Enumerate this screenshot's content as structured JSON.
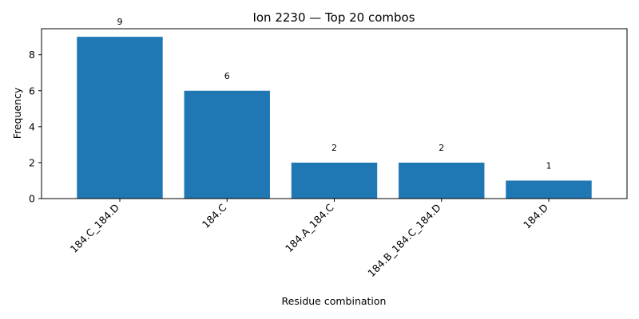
{
  "chart_data": {
    "type": "bar",
    "title": "Ion 2230 — Top 20 combos",
    "xlabel": "Residue combination",
    "ylabel": "Frequency",
    "categories": [
      "184.C_184.D",
      "184.C",
      "184.A_184.C",
      "184.B_184.C_184.D",
      "184.D"
    ],
    "values": [
      9,
      6,
      2,
      2,
      1
    ],
    "ylim": [
      0,
      9.45
    ],
    "yticks": [
      0,
      2,
      4,
      6,
      8
    ],
    "grid": false,
    "bar_color": "#1f77b4"
  }
}
